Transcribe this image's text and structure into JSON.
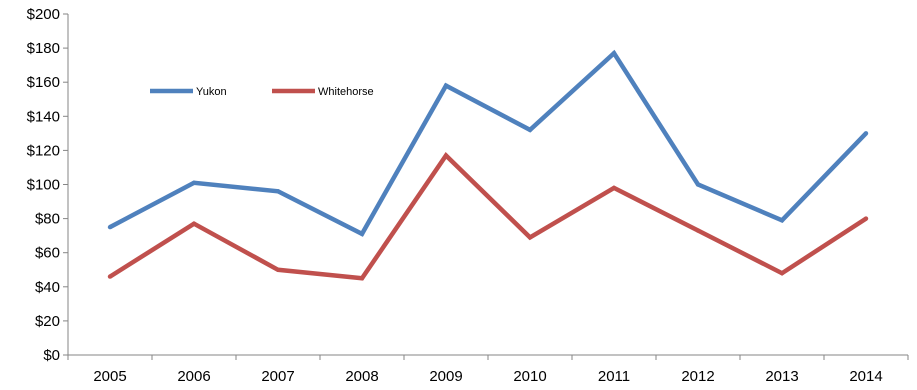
{
  "chart_data": {
    "type": "line",
    "categories": [
      "2005",
      "2006",
      "2007",
      "2008",
      "2009",
      "2010",
      "2011",
      "2012",
      "2013",
      "2014"
    ],
    "series": [
      {
        "name": "Yukon",
        "color": "#4F81BD",
        "values": [
          75,
          101,
          96,
          71,
          158,
          132,
          177,
          100,
          79,
          130
        ]
      },
      {
        "name": "Whitehorse",
        "color": "#C0504D",
        "values": [
          46,
          77,
          50,
          45,
          117,
          69,
          98,
          73,
          48,
          80
        ]
      }
    ],
    "y_ticks": [
      "$0",
      "$20",
      "$40",
      "$60",
      "$80",
      "$100",
      "$120",
      "$140",
      "$160",
      "$180",
      "$200"
    ],
    "ylim": [
      0,
      200
    ],
    "ystep": 20,
    "grid": false,
    "legend_position": "top-left"
  }
}
